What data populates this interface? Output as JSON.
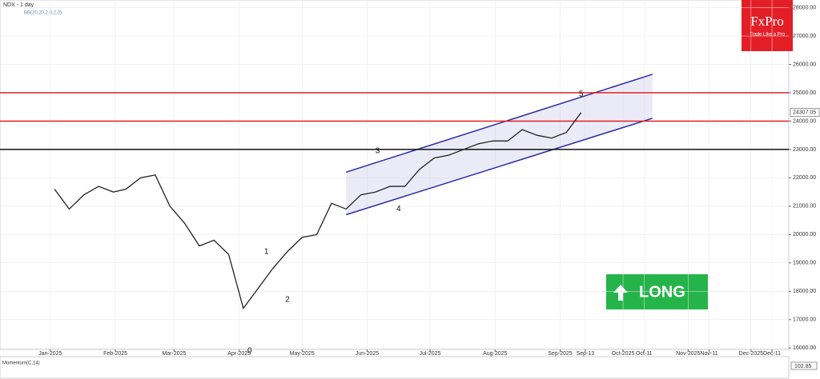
{
  "chart_data": {
    "type": "line",
    "title": "NDX - 1 day",
    "subtitle": "BB(20,20,2,0,2,0)",
    "x": [
      2,
      9,
      16,
      23,
      30,
      36,
      43,
      50,
      57,
      64,
      71,
      78,
      85,
      92,
      99,
      106,
      113,
      120,
      127,
      134,
      141,
      148,
      155,
      162,
      169,
      176,
      183,
      190,
      197,
      204,
      211,
      218,
      225,
      232,
      239,
      246,
      253
    ],
    "series": [
      {
        "name": "NDX",
        "color": "#222222",
        "values": [
          21600,
          20900,
          21400,
          21700,
          21500,
          21600,
          22000,
          22100,
          21000,
          20400,
          19600,
          19800,
          19300,
          17400,
          18100,
          18800,
          19400,
          19900,
          20000,
          21100,
          20900,
          21400,
          21500,
          21700,
          21700,
          22300,
          22700,
          22800,
          23000,
          23200,
          23300,
          23300,
          23700,
          23500,
          23400,
          23600,
          24300
        ]
      }
    ],
    "last_price": 24307.05,
    "levels": [
      {
        "value": 25000,
        "color": "#e02020"
      },
      {
        "value": 24000,
        "color": "#e02020"
      },
      {
        "value": 23000,
        "color": "#111111"
      }
    ],
    "channel": {
      "x": [
        141,
        287
      ],
      "upper": [
        22200,
        25650
      ],
      "lower": [
        20700,
        24100
      ],
      "color": "#2a2aa8"
    },
    "annotations": [
      {
        "text": "0",
        "x": 95,
        "y": 15900
      },
      {
        "text": "1",
        "x": 103,
        "y": 19400
      },
      {
        "text": "2",
        "x": 113,
        "y": 17700
      },
      {
        "text": "3",
        "x": 156,
        "y": 22950
      },
      {
        "text": "4",
        "x": 166,
        "y": 20900
      },
      {
        "text": "5",
        "x": 253,
        "y": 24950
      }
    ],
    "xlim": [
      -24,
      352
    ],
    "xticks": [
      {
        "value": 0,
        "label": "Jan-2025"
      },
      {
        "value": 31,
        "label": "Feb-2025"
      },
      {
        "value": 59,
        "label": "Mar-2025"
      },
      {
        "value": 90,
        "label": "Apr-2025"
      },
      {
        "value": 120,
        "label": "May-2025"
      },
      {
        "value": 151,
        "label": "Jun-2025"
      },
      {
        "value": 181,
        "label": "Jul-2025"
      },
      {
        "value": 212,
        "label": "Aug-2025"
      },
      {
        "value": 243,
        "label": "Sep-2025"
      },
      {
        "value": 255,
        "label": "Sep-13"
      },
      {
        "value": 273,
        "label": "Oct-2025"
      },
      {
        "value": 283,
        "label": "Oct-11"
      },
      {
        "value": 304,
        "label": "Nov-2025"
      },
      {
        "value": 314,
        "label": "Nov-11"
      },
      {
        "value": 334,
        "label": "Dec-2025"
      },
      {
        "value": 344,
        "label": "Dec-11"
      }
    ],
    "ylim": [
      15950,
      28270
    ],
    "yticks": [
      {
        "value": 16000,
        "label": "16000.00"
      },
      {
        "value": 17000,
        "label": "17000.00"
      },
      {
        "value": 18000,
        "label": "18000.00"
      },
      {
        "value": 19000,
        "label": "19000.00"
      },
      {
        "value": 20000,
        "label": "20000.00"
      },
      {
        "value": 21000,
        "label": "21000.00"
      },
      {
        "value": 22000,
        "label": "22000.00"
      },
      {
        "value": 23000,
        "label": "23000.00"
      },
      {
        "value": 24000,
        "label": "24000.00"
      },
      {
        "value": 25000,
        "label": "25000.00"
      },
      {
        "value": 26000,
        "label": "26000.00"
      },
      {
        "value": 27000,
        "label": "27000.00"
      },
      {
        "value": 28000,
        "label": "28000.00"
      }
    ],
    "grid": true,
    "momentum": {
      "label": "Momentum(C,14)",
      "value": 102.85
    },
    "logo": {
      "name": "FxPro",
      "tagline": "Trade Like a Pro"
    },
    "signal": "LONG"
  }
}
